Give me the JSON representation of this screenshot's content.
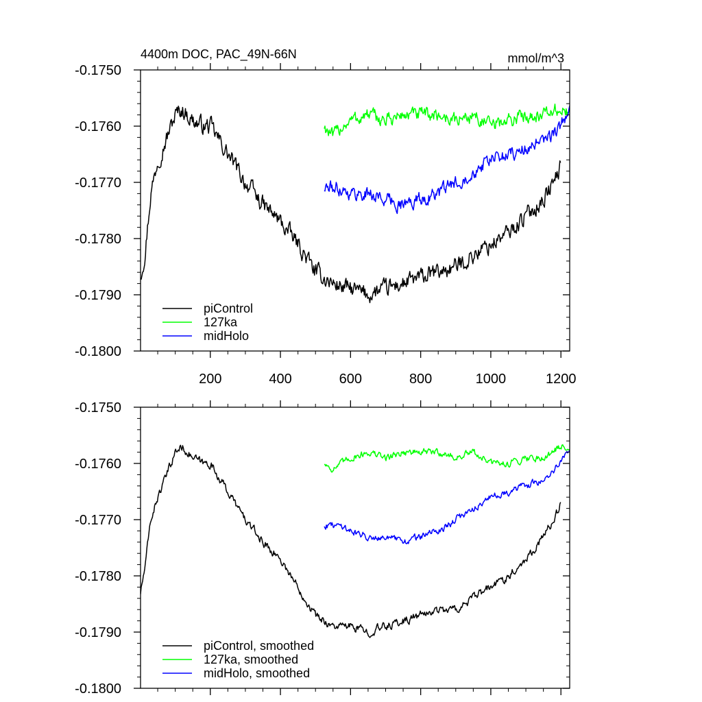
{
  "chart_data": [
    {
      "type": "line",
      "title": "4400m DOC, PAC_49N-66N",
      "units": "mmol/m^3",
      "xlim": [
        1,
        1225
      ],
      "ylim": [
        -0.18,
        -0.175
      ],
      "x_ticks": [
        200,
        400,
        600,
        800,
        1000,
        1200
      ],
      "x_tick_labels": [
        "200",
        "400",
        "600",
        "800",
        "1000",
        "1200"
      ],
      "y_ticks": [
        -0.175,
        -0.176,
        -0.177,
        -0.178,
        -0.179,
        -0.18
      ],
      "y_tick_labels": [
        "-0.1750",
        "-0.1760",
        "-0.1770",
        "-0.1780",
        "-0.1790",
        "-0.1800"
      ],
      "legend_position": "bottom-left",
      "series": [
        {
          "name": "piControl",
          "color": "#000000",
          "noise": 0.00025,
          "points": [
            [
              1,
              -0.17865
            ],
            [
              15,
              -0.1782
            ],
            [
              30,
              -0.1772
            ],
            [
              50,
              -0.1766
            ],
            [
              70,
              -0.1763
            ],
            [
              100,
              -0.1758
            ],
            [
              120,
              -0.1757
            ],
            [
              150,
              -0.1759
            ],
            [
              180,
              -0.176
            ],
            [
              200,
              -0.176
            ],
            [
              250,
              -0.1765
            ],
            [
              300,
              -0.177
            ],
            [
              350,
              -0.1774
            ],
            [
              400,
              -0.1777
            ],
            [
              450,
              -0.1781
            ],
            [
              500,
              -0.1786
            ],
            [
              550,
              -0.1788
            ],
            [
              600,
              -0.1789
            ],
            [
              650,
              -0.179
            ],
            [
              700,
              -0.1789
            ],
            [
              750,
              -0.1788
            ],
            [
              800,
              -0.1787
            ],
            [
              850,
              -0.1786
            ],
            [
              900,
              -0.1785
            ],
            [
              950,
              -0.1783
            ],
            [
              1000,
              -0.1781
            ],
            [
              1050,
              -0.1779
            ],
            [
              1100,
              -0.1776
            ],
            [
              1150,
              -0.1773
            ],
            [
              1180,
              -0.177
            ],
            [
              1200,
              -0.1767
            ]
          ]
        },
        {
          "name": "127ka",
          "color": "#00ff00",
          "noise": 0.0002,
          "points": [
            [
              525,
              -0.176
            ],
            [
              550,
              -0.1762
            ],
            [
              575,
              -0.176
            ],
            [
              600,
              -0.1759
            ],
            [
              650,
              -0.1758
            ],
            [
              700,
              -0.1759
            ],
            [
              750,
              -0.1758
            ],
            [
              800,
              -0.1758
            ],
            [
              850,
              -0.1758
            ],
            [
              900,
              -0.1759
            ],
            [
              950,
              -0.1758
            ],
            [
              1000,
              -0.176
            ],
            [
              1050,
              -0.1759
            ],
            [
              1100,
              -0.1758
            ],
            [
              1150,
              -0.1758
            ],
            [
              1200,
              -0.1757
            ],
            [
              1225,
              -0.1758
            ]
          ]
        },
        {
          "name": "midHolo",
          "color": "#0000ff",
          "noise": 0.0002,
          "points": [
            [
              525,
              -0.1771
            ],
            [
              575,
              -0.1771
            ],
            [
              600,
              -0.1772
            ],
            [
              650,
              -0.1772
            ],
            [
              700,
              -0.1773
            ],
            [
              750,
              -0.1774
            ],
            [
              800,
              -0.1773
            ],
            [
              850,
              -0.1772
            ],
            [
              900,
              -0.177
            ],
            [
              950,
              -0.1768
            ],
            [
              1000,
              -0.1766
            ],
            [
              1050,
              -0.1765
            ],
            [
              1100,
              -0.1764
            ],
            [
              1150,
              -0.1763
            ],
            [
              1200,
              -0.176
            ],
            [
              1225,
              -0.1757
            ]
          ]
        }
      ]
    },
    {
      "type": "line",
      "xlim": [
        1,
        1225
      ],
      "ylim": [
        -0.18,
        -0.175
      ],
      "y_ticks": [
        -0.175,
        -0.176,
        -0.177,
        -0.178,
        -0.179,
        -0.18
      ],
      "y_tick_labels": [
        "-0.1750",
        "-0.1760",
        "-0.1770",
        "-0.1780",
        "-0.1790",
        "-0.1800"
      ],
      "legend_position": "bottom-left",
      "series": [
        {
          "name": "piControl, smoothed",
          "color": "#000000",
          "noise": 0.00012,
          "points": [
            [
              1,
              -0.1783
            ],
            [
              15,
              -0.1778
            ],
            [
              30,
              -0.177
            ],
            [
              50,
              -0.1766
            ],
            [
              70,
              -0.1763
            ],
            [
              100,
              -0.1758
            ],
            [
              120,
              -0.1757
            ],
            [
              150,
              -0.1759
            ],
            [
              180,
              -0.176
            ],
            [
              200,
              -0.176
            ],
            [
              250,
              -0.1765
            ],
            [
              300,
              -0.177
            ],
            [
              350,
              -0.1774
            ],
            [
              400,
              -0.1777
            ],
            [
              450,
              -0.1782
            ],
            [
              500,
              -0.1787
            ],
            [
              550,
              -0.1789
            ],
            [
              600,
              -0.1789
            ],
            [
              650,
              -0.179
            ],
            [
              700,
              -0.1789
            ],
            [
              750,
              -0.1788
            ],
            [
              800,
              -0.1787
            ],
            [
              850,
              -0.1786
            ],
            [
              900,
              -0.1786
            ],
            [
              950,
              -0.1784
            ],
            [
              1000,
              -0.1782
            ],
            [
              1050,
              -0.178
            ],
            [
              1100,
              -0.1777
            ],
            [
              1150,
              -0.1773
            ],
            [
              1180,
              -0.177
            ],
            [
              1200,
              -0.1767
            ]
          ]
        },
        {
          "name": "127ka, smoothed",
          "color": "#00ff00",
          "noise": 0.0001,
          "points": [
            [
              525,
              -0.176
            ],
            [
              550,
              -0.1761
            ],
            [
              575,
              -0.176
            ],
            [
              600,
              -0.1759
            ],
            [
              650,
              -0.1758
            ],
            [
              700,
              -0.1759
            ],
            [
              750,
              -0.1758
            ],
            [
              800,
              -0.1758
            ],
            [
              850,
              -0.1758
            ],
            [
              900,
              -0.1759
            ],
            [
              950,
              -0.1758
            ],
            [
              1000,
              -0.176
            ],
            [
              1050,
              -0.176
            ],
            [
              1100,
              -0.1759
            ],
            [
              1150,
              -0.1759
            ],
            [
              1200,
              -0.1757
            ],
            [
              1225,
              -0.1757
            ]
          ]
        },
        {
          "name": "midHolo, smoothed",
          "color": "#0000ff",
          "noise": 0.0001,
          "points": [
            [
              525,
              -0.1771
            ],
            [
              575,
              -0.1771
            ],
            [
              600,
              -0.1772
            ],
            [
              650,
              -0.1773
            ],
            [
              700,
              -0.1773
            ],
            [
              750,
              -0.1774
            ],
            [
              800,
              -0.1773
            ],
            [
              850,
              -0.1772
            ],
            [
              900,
              -0.177
            ],
            [
              950,
              -0.1768
            ],
            [
              1000,
              -0.1766
            ],
            [
              1050,
              -0.1765
            ],
            [
              1100,
              -0.1764
            ],
            [
              1150,
              -0.1763
            ],
            [
              1200,
              -0.176
            ],
            [
              1225,
              -0.1757
            ]
          ]
        }
      ]
    }
  ]
}
